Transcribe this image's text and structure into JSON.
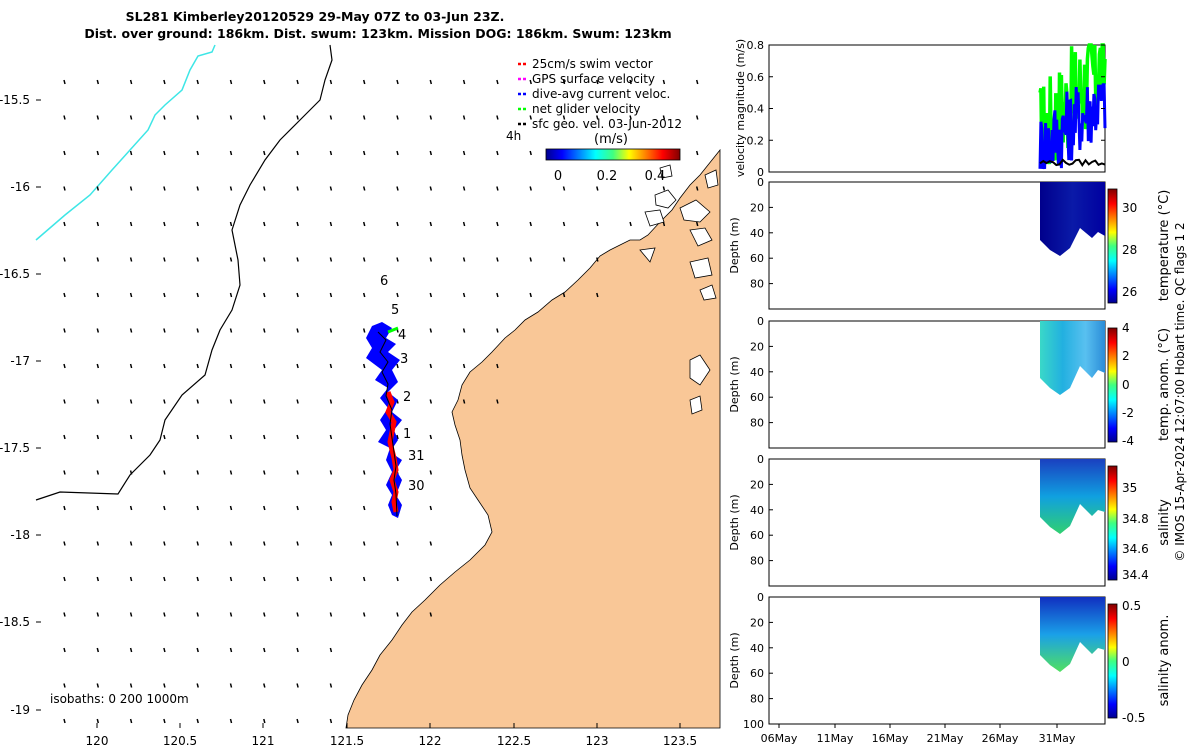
{
  "title": {
    "line1": "SL281 Kimberley20120529 29-May 07Z to 03-Jun 23Z.",
    "line2": "Dist. over ground: 186km. Dist. swum: 123km. Mission DOG: 186km. Swum: 123km"
  },
  "map": {
    "legend": [
      {
        "label": "25cm/s swim vector",
        "color": "#ff0000"
      },
      {
        "label": "GPS surface velocity",
        "color": "#ff00ff"
      },
      {
        "label": "dive-avg current veloc.",
        "color": "#0000ff"
      },
      {
        "label": "net glider velocity",
        "color": "#00ff00"
      },
      {
        "label": "sfc geo. vel. 03-Jun-2012",
        "color": "#000000"
      }
    ],
    "colorbar": {
      "unit": "(m/s)",
      "ticks": [
        "0",
        "0.2",
        "0.4"
      ],
      "time_label": "4h"
    },
    "x_ticks": [
      "120",
      "120.5",
      "121",
      "121.5",
      "122",
      "122.5",
      "123",
      "123.5"
    ],
    "y_ticks": [
      "-15.5",
      "-16",
      "-16.5",
      "-17",
      "-17.5",
      "-18",
      "-18.5",
      "-19"
    ],
    "day_labels": [
      "6",
      "5",
      "4",
      "3",
      "2",
      "1",
      "31",
      "30"
    ],
    "isobaths_label": "isobaths: 0   200  1000m",
    "colors": {
      "land": "#f9c797",
      "track": "#0000ff",
      "swim": "#ff0000",
      "cyan_line": "#3ee6e6"
    }
  },
  "chart_data": [
    {
      "type": "line",
      "title": "velocity magnitude",
      "ylabel": "velocity magnitude (m/s)",
      "ylim": [
        0,
        0.8
      ],
      "yticks": [
        "0",
        "0.2",
        "0.4",
        "0.6",
        "0.8"
      ],
      "x_ticks": [
        "06May",
        "11May",
        "16May",
        "21May",
        "26May",
        "31May"
      ],
      "series": [
        {
          "name": "net glider velocity",
          "color": "#00ff00",
          "y_range": [
            0.05,
            0.8
          ]
        },
        {
          "name": "dive-avg current veloc.",
          "color": "#0000ff",
          "y_range": [
            0.02,
            0.55
          ]
        },
        {
          "name": "sfc geo. vel.",
          "color": "#000000",
          "y_range": [
            0.04,
            0.08
          ]
        }
      ]
    },
    {
      "type": "heatmap",
      "ylabel": "Depth (m)",
      "yticks": [
        "0",
        "20",
        "40",
        "60",
        "80"
      ],
      "colorbar_label": "temperature (°C)",
      "colorbar_ticks": [
        "30",
        "28",
        "26"
      ]
    },
    {
      "type": "heatmap",
      "ylabel": "Depth (m)",
      "yticks": [
        "0",
        "20",
        "40",
        "60",
        "80"
      ],
      "colorbar_label": "temp. anom. (°C)",
      "colorbar_ticks": [
        "4",
        "2",
        "0",
        "-2",
        "-4"
      ]
    },
    {
      "type": "heatmap",
      "ylabel": "Depth (m)",
      "yticks": [
        "0",
        "20",
        "40",
        "60",
        "80"
      ],
      "colorbar_label": "salinity",
      "colorbar_ticks": [
        "35",
        "34.8",
        "34.6",
        "34.4"
      ]
    },
    {
      "type": "heatmap",
      "ylabel": "Depth (m)",
      "yticks": [
        "0",
        "20",
        "40",
        "60",
        "80",
        "100"
      ],
      "colorbar_label": "salinity anom.",
      "colorbar_ticks": [
        "0.5",
        "0",
        "-0.5"
      ]
    }
  ],
  "footer": "© IMOS 15-Apr-2024 12:07:00 Hobart time. QC flags 1  2"
}
